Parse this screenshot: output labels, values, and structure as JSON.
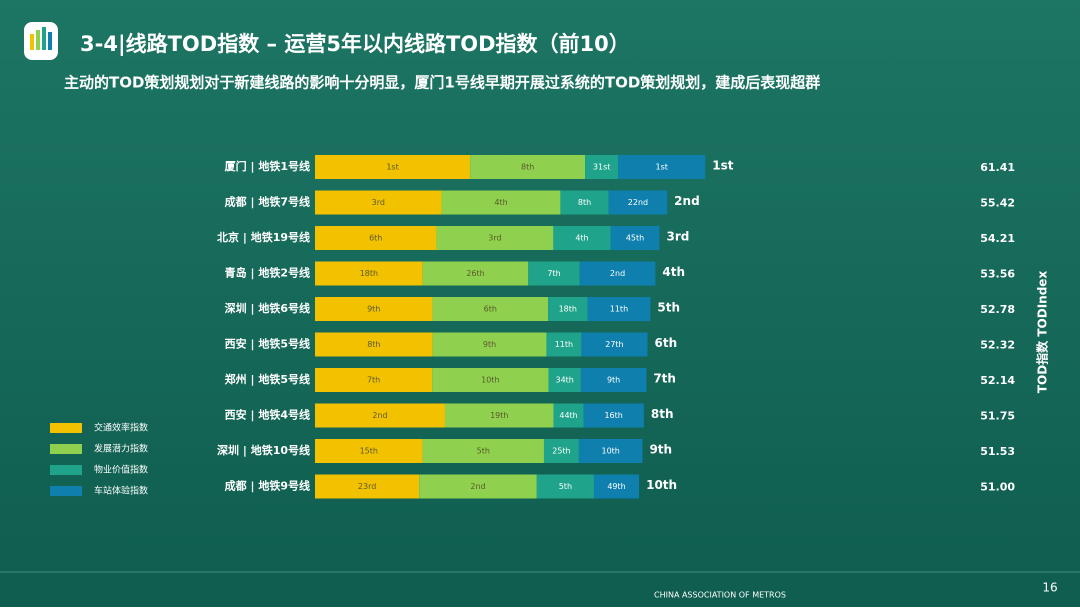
{
  "chart_data": {
    "type": "stacked-hbar",
    "title": "3-4|线路TOD指数 – 运营5年以内线路TOD指数（前10）",
    "subtitle": "主动的TOD策划规划对于新建线路的影响十分明显，厦门1号线早期开展过系统的TOD策划规划，建成后表现超群",
    "y2_label": "TOD指数 TODIndex",
    "categories": [
      "厦门 | 地铁1号线",
      "成都 | 地铁7号线",
      "北京 | 地铁19号线",
      "青岛 | 地铁2号线",
      "深圳 | 地铁6号线",
      "西安 | 地铁5号线",
      "郑州 | 地铁5号线",
      "西安 | 地铁4号线",
      "深圳 | 地铁10号线",
      "成都 | 地铁9号线"
    ],
    "series": [
      {
        "name": "交通效率指数",
        "color": "#f2c200",
        "values": [
          24.41,
          19.92,
          19.11,
          16.96,
          18.48,
          18.52,
          18.44,
          20.45,
          16.93,
          16.4
        ],
        "rank_labels": [
          "1st",
          "3rd",
          "6th",
          "18th",
          "9th",
          "8th",
          "7th",
          "2nd",
          "15th",
          "23rd"
        ]
      },
      {
        "name": "发展潜力指数",
        "color": "#8fd14f",
        "values": [
          18.1,
          18.7,
          18.4,
          16.6,
          18.2,
          17.9,
          18.3,
          17.1,
          19.1,
          18.5
        ],
        "rank_labels": [
          "8th",
          "4th",
          "3rd",
          "26th",
          "6th",
          "9th",
          "10th",
          "19th",
          "5th",
          "2nd"
        ]
      },
      {
        "name": "物业价值指数",
        "color": "#1fa38a",
        "values": [
          5.2,
          7.6,
          9.0,
          8.1,
          6.2,
          5.5,
          5.1,
          4.7,
          5.5,
          9.0
        ],
        "rank_labels": [
          "31st",
          "8th",
          "4th",
          "7th",
          "18th",
          "11th",
          "34th",
          "44th",
          "25th",
          "5th"
        ]
      },
      {
        "name": "车站体验指数",
        "color": "#0f7fae",
        "values": [
          13.7,
          9.2,
          7.7,
          11.9,
          9.9,
          10.4,
          10.3,
          9.5,
          10.0,
          7.1
        ],
        "rank_labels": [
          "1st",
          "22nd",
          "45th",
          "2nd",
          "11th",
          "27th",
          "9th",
          "16th",
          "10th",
          "49th"
        ]
      }
    ],
    "overall_ranks": [
      "1st",
      "2nd",
      "3rd",
      "4th",
      "5th",
      "6th",
      "7th",
      "8th",
      "9th",
      "10th"
    ],
    "total_labels": [
      "61.41",
      "55.42",
      "54.21",
      "53.56",
      "52.78",
      "52.32",
      "52.14",
      "51.75",
      "51.53",
      "51.00"
    ],
    "xlim": [
      0,
      62
    ],
    "page_number": "16",
    "footer_org": "CHINA ASSOCIATION OF METROS"
  }
}
